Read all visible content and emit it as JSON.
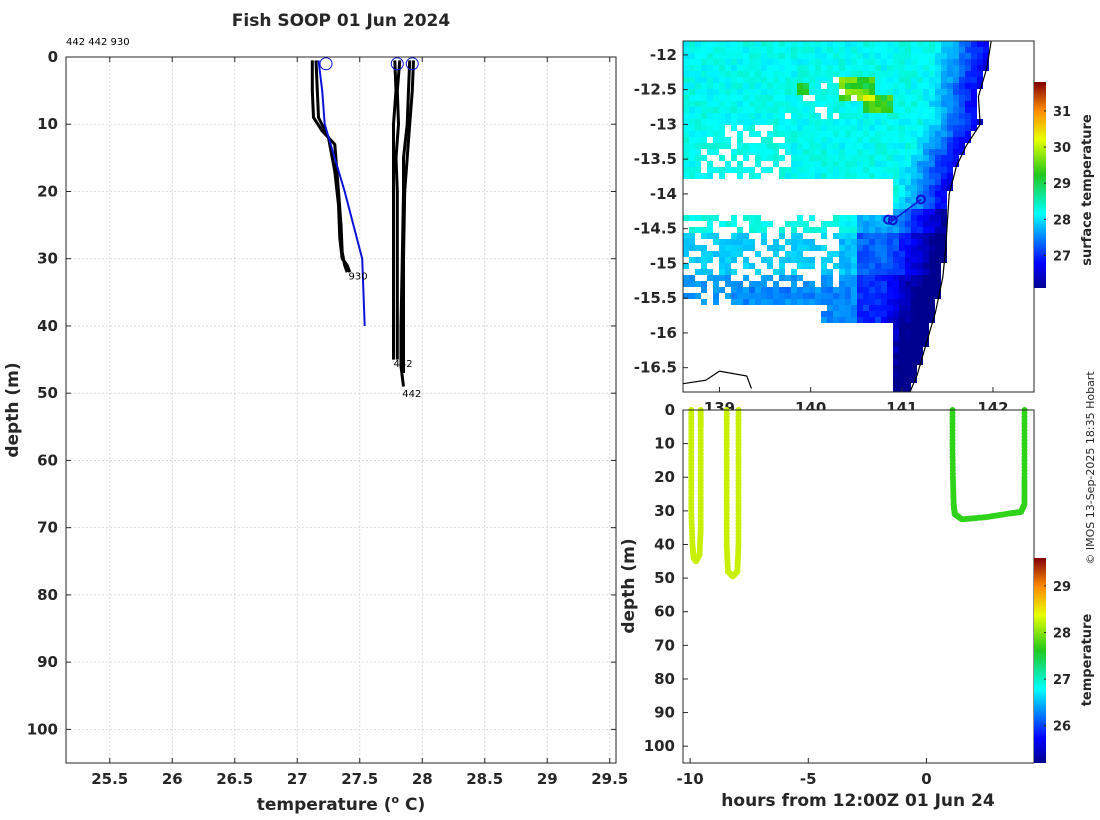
{
  "chart_data": [
    {
      "type": "line",
      "name": "profiles",
      "title": "Fish SOOP 01 Jun 2024",
      "profile_ids": "442 442 930",
      "xlabel": "temperature (",
      "xlabel_sup": "o",
      "xlabel_unit": " C)",
      "ylabel": "depth (m)",
      "xlim": [
        25.15,
        29.55
      ],
      "ylim": [
        0,
        105
      ],
      "xticks": [
        25.5,
        26,
        26.5,
        27,
        27.5,
        28,
        28.5,
        29,
        29.5
      ],
      "xtick_labels": [
        "25.5",
        "26",
        "26.5",
        "27",
        "27.5",
        "28",
        "28.5",
        "29",
        "29.5"
      ],
      "yticks": [
        0,
        10,
        20,
        30,
        40,
        50,
        60,
        70,
        80,
        90,
        100
      ],
      "ytick_labels": [
        "0",
        "10",
        "20",
        "30",
        "40",
        "50",
        "60",
        "70",
        "80",
        "90",
        "100"
      ],
      "series": [
        {
          "name": "930 a",
          "color": "#000000",
          "points": [
            [
              27.12,
              0.5
            ],
            [
              27.12,
              5
            ],
            [
              27.13,
              9
            ],
            [
              27.2,
              11
            ],
            [
              27.3,
              13
            ],
            [
              27.33,
              20
            ],
            [
              27.35,
              25
            ],
            [
              27.36,
              29
            ],
            [
              27.38,
              31
            ],
            [
              27.4,
              32
            ]
          ],
          "label": "930"
        },
        {
          "name": "930 b",
          "color": "#000000",
          "points": [
            [
              27.15,
              0.5
            ],
            [
              27.16,
              5
            ],
            [
              27.17,
              9
            ],
            [
              27.25,
              12
            ],
            [
              27.3,
              17
            ],
            [
              27.33,
              22
            ],
            [
              27.34,
              27
            ],
            [
              27.36,
              30
            ],
            [
              27.4,
              31
            ],
            [
              27.42,
              32
            ]
          ]
        },
        {
          "name": "442 a",
          "color": "#000000",
          "points": [
            [
              27.78,
              0.5
            ],
            [
              27.79,
              5
            ],
            [
              27.77,
              10
            ],
            [
              27.77,
              15
            ],
            [
              27.77,
              20
            ],
            [
              27.77,
              30
            ],
            [
              27.77,
              40
            ],
            [
              27.77,
              45
            ]
          ],
          "label": "442"
        },
        {
          "name": "442 b",
          "color": "#000000",
          "points": [
            [
              27.82,
              0.5
            ],
            [
              27.8,
              5
            ],
            [
              27.81,
              10
            ],
            [
              27.79,
              15
            ],
            [
              27.8,
              20
            ],
            [
              27.8,
              30
            ],
            [
              27.8,
              40
            ],
            [
              27.8,
              45
            ]
          ]
        },
        {
          "name": "442 c",
          "color": "#000000",
          "points": [
            [
              27.9,
              0.5
            ],
            [
              27.89,
              5
            ],
            [
              27.88,
              10
            ],
            [
              27.85,
              15
            ],
            [
              27.85,
              20
            ],
            [
              27.84,
              30
            ],
            [
              27.83,
              40
            ],
            [
              27.83,
              46
            ],
            [
              27.85,
              49
            ]
          ],
          "label": "442"
        },
        {
          "name": "442 d",
          "color": "#000000",
          "points": [
            [
              27.93,
              0.5
            ],
            [
              27.92,
              5
            ],
            [
              27.9,
              10
            ],
            [
              27.88,
              15
            ],
            [
              27.86,
              20
            ],
            [
              27.85,
              30
            ],
            [
              27.85,
              40
            ],
            [
              27.85,
              47
            ]
          ]
        },
        {
          "name": "climatology",
          "color": "#0a12d6",
          "points": [
            [
              27.17,
              0.5
            ],
            [
              27.2,
              5
            ],
            [
              27.22,
              10
            ],
            [
              27.38,
              20
            ],
            [
              27.52,
              30
            ],
            [
              27.54,
              40
            ]
          ]
        }
      ],
      "surface_markers": [
        [
          27.23,
          1
        ],
        [
          27.8,
          1
        ],
        [
          27.92,
          1
        ]
      ],
      "labels": [
        {
          "text": "930",
          "x": 27.41,
          "y": 32.5
        },
        {
          "text": "442",
          "x": 27.77,
          "y": 45.5
        },
        {
          "text": "442",
          "x": 27.84,
          "y": 50
        }
      ]
    },
    {
      "type": "heatmap",
      "name": "map",
      "colorbar_label": "surface temperature",
      "xlim": [
        138.6,
        142.45
      ],
      "ylim": [
        -16.85,
        -11.8
      ],
      "xticks": [
        139,
        140,
        141,
        142
      ],
      "xtick_labels": [
        "139",
        "140",
        "141",
        "142"
      ],
      "yticks": [
        -12,
        -12.5,
        -13,
        -13.5,
        -14,
        -14.5,
        -15,
        -15.5,
        -16,
        -16.5
      ],
      "ytick_labels": [
        "-12",
        "-12.5",
        "-13",
        "-13.5",
        "-14",
        "-14.5",
        "-15",
        "-15.5",
        "-16",
        "-16.5"
      ],
      "colorbar_range": [
        26.1,
        31.8
      ],
      "colorbar_ticks": [
        27,
        28,
        29,
        30,
        31
      ],
      "colorbar_tick_labels": [
        "27",
        "28",
        "29",
        "30",
        "31"
      ],
      "coast_points": [
        [
          141.98,
          -11.8
        ],
        [
          141.93,
          -12.2
        ],
        [
          141.84,
          -12.6
        ],
        [
          141.86,
          -13
        ],
        [
          141.71,
          -13.3
        ],
        [
          141.6,
          -13.6
        ],
        [
          141.52,
          -14
        ],
        [
          141.5,
          -14.4
        ],
        [
          141.48,
          -14.8
        ],
        [
          141.45,
          -15.2
        ],
        [
          141.37,
          -15.7
        ],
        [
          141.28,
          -16.1
        ],
        [
          141.17,
          -16.6
        ],
        [
          141.09,
          -16.85
        ]
      ],
      "track_points": [
        [
          140.85,
          -14.37
        ],
        [
          140.9,
          -14.38
        ],
        [
          141.21,
          -14.08
        ]
      ],
      "west_land_points": [
        [
          138.6,
          -16.73
        ],
        [
          138.85,
          -16.68
        ],
        [
          139.0,
          -16.55
        ],
        [
          139.3,
          -16.62
        ],
        [
          139.35,
          -16.8
        ]
      ]
    },
    {
      "type": "scatter",
      "name": "depth-time",
      "xlabel": "hours from 12:00Z 01 Jun 24",
      "ylabel": "depth (m)",
      "colorbar_label": "temperature",
      "xlim": [
        -10.3,
        4.55
      ],
      "ylim": [
        0,
        105
      ],
      "xticks": [
        -10,
        -5,
        0
      ],
      "xtick_labels": [
        "-10",
        "-5",
        "0"
      ],
      "yticks": [
        0,
        10,
        20,
        30,
        40,
        50,
        60,
        70,
        80,
        90,
        100
      ],
      "ytick_labels": [
        "0",
        "10",
        "20",
        "30",
        "40",
        "50",
        "60",
        "70",
        "80",
        "90",
        "100"
      ],
      "colorbar_range": [
        25.2,
        29.6
      ],
      "colorbar_ticks": [
        26,
        27,
        28,
        29
      ],
      "colorbar_tick_labels": [
        "26",
        "27",
        "28",
        "29"
      ],
      "casts": [
        {
          "color": "#c6f000",
          "points": [
            [
              -9.95,
              0
            ],
            [
              -9.95,
              10
            ],
            [
              -9.95,
              20
            ],
            [
              -9.95,
              30
            ],
            [
              -9.9,
              40
            ],
            [
              -9.85,
              44
            ],
            [
              -9.75,
              45
            ],
            [
              -9.6,
              43
            ],
            [
              -9.55,
              35
            ],
            [
              -9.55,
              25
            ],
            [
              -9.55,
              15
            ],
            [
              -9.55,
              5
            ],
            [
              -9.55,
              0
            ]
          ]
        },
        {
          "color": "#c6f000",
          "points": [
            [
              -8.45,
              0
            ],
            [
              -8.45,
              10
            ],
            [
              -8.45,
              20
            ],
            [
              -8.45,
              30
            ],
            [
              -8.45,
              40
            ],
            [
              -8.4,
              48
            ],
            [
              -8.2,
              49.5
            ],
            [
              -8.0,
              48
            ],
            [
              -7.95,
              40
            ],
            [
              -7.95,
              30
            ],
            [
              -7.95,
              20
            ],
            [
              -7.95,
              10
            ],
            [
              -7.95,
              0
            ]
          ]
        },
        {
          "color": "#2fd31a",
          "points": [
            [
              1.1,
              0
            ],
            [
              1.1,
              10
            ],
            [
              1.12,
              20
            ],
            [
              1.15,
              28
            ],
            [
              1.2,
              31
            ],
            [
              1.5,
              32.5
            ],
            [
              2.5,
              31.9
            ],
            [
              3.5,
              30.8
            ],
            [
              4.0,
              30.3
            ],
            [
              4.15,
              28
            ],
            [
              4.15,
              20
            ],
            [
              4.15,
              10
            ],
            [
              4.15,
              0
            ]
          ]
        }
      ]
    }
  ],
  "copyright": "© IMOS 13-Sep-2025 18:35 Hobart",
  "colors": {
    "profile": "#000000",
    "climatology": "#0a12d6",
    "axis": "#262626"
  }
}
